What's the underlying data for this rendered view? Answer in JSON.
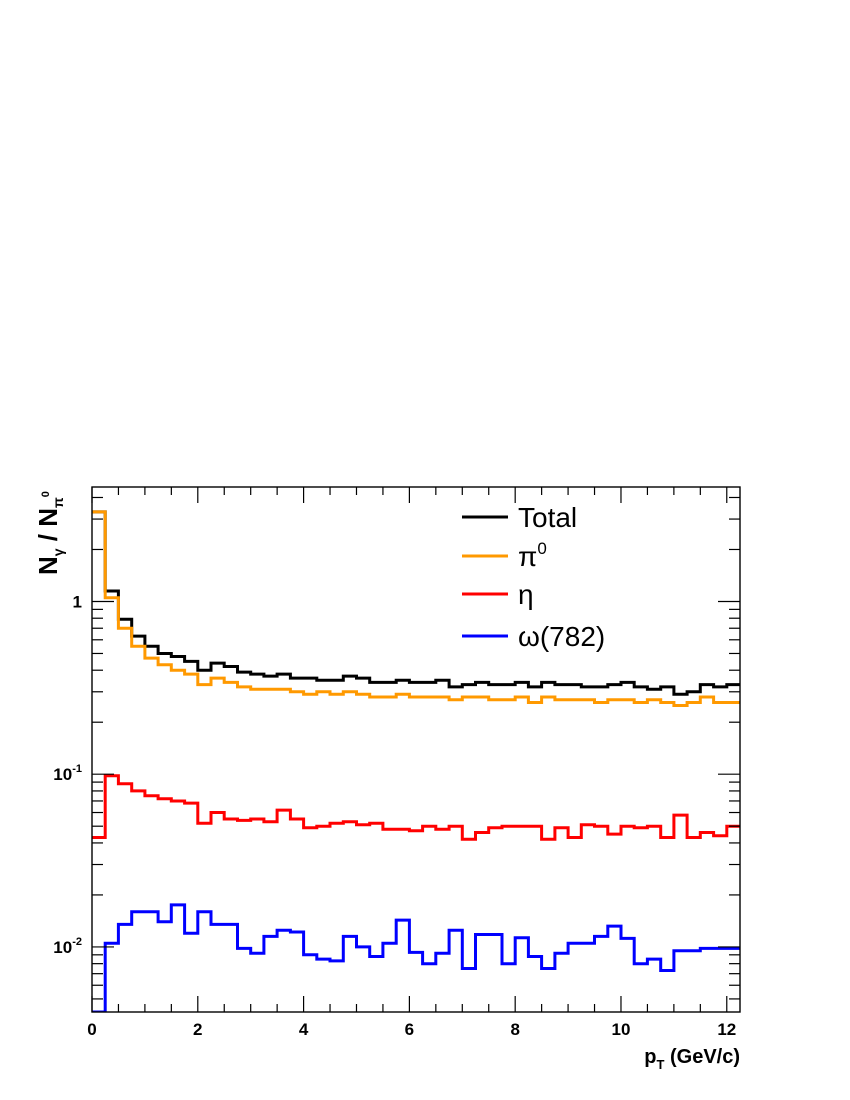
{
  "chart_data": {
    "type": "line",
    "style": "histogram-step",
    "title": "",
    "xlabel": {
      "main": "p",
      "sub": "T",
      "rest": " (GeV/c)"
    },
    "ylabel": {
      "n1": "N",
      "sub1": "γ",
      "mid": " / N",
      "sub2": "π",
      "sup2": "0"
    },
    "xlim": [
      0,
      12.25
    ],
    "ylim": [
      0.0042,
      4.6
    ],
    "yscale": "log",
    "x_ticks": [
      "0",
      "2",
      "4",
      "6",
      "8",
      "10",
      "12"
    ],
    "y_ticks": [
      {
        "value": 1,
        "base": "1",
        "exp": ""
      },
      {
        "value": 0.1,
        "base": "10",
        "exp": "-1"
      },
      {
        "value": 0.01,
        "base": "10",
        "exp": "-2"
      }
    ],
    "bin_width": 0.25,
    "legend_position": "top-right",
    "series": [
      {
        "name": "Total",
        "color": "#000000",
        "values": [
          3.3,
          1.15,
          0.79,
          0.63,
          0.55,
          0.5,
          0.48,
          0.45,
          0.4,
          0.44,
          0.42,
          0.39,
          0.38,
          0.37,
          0.38,
          0.36,
          0.36,
          0.35,
          0.35,
          0.37,
          0.36,
          0.34,
          0.34,
          0.35,
          0.34,
          0.34,
          0.35,
          0.32,
          0.33,
          0.34,
          0.33,
          0.33,
          0.34,
          0.32,
          0.34,
          0.33,
          0.33,
          0.32,
          0.32,
          0.33,
          0.34,
          0.32,
          0.31,
          0.32,
          0.29,
          0.3,
          0.33,
          0.32,
          0.33
        ]
      },
      {
        "name": "π",
        "name_sup": "0",
        "color": "#ff9900",
        "values": [
          3.3,
          1.05,
          0.7,
          0.55,
          0.47,
          0.43,
          0.4,
          0.38,
          0.33,
          0.36,
          0.34,
          0.32,
          0.31,
          0.31,
          0.31,
          0.3,
          0.29,
          0.3,
          0.29,
          0.3,
          0.29,
          0.28,
          0.28,
          0.29,
          0.28,
          0.28,
          0.28,
          0.27,
          0.28,
          0.28,
          0.27,
          0.27,
          0.28,
          0.26,
          0.28,
          0.27,
          0.27,
          0.27,
          0.26,
          0.27,
          0.27,
          0.26,
          0.27,
          0.26,
          0.25,
          0.26,
          0.28,
          0.26,
          0.26
        ]
      },
      {
        "name": "η",
        "color": "#ff0000",
        "values": [
          0.043,
          0.098,
          0.088,
          0.08,
          0.075,
          0.072,
          0.07,
          0.068,
          0.052,
          0.06,
          0.055,
          0.054,
          0.055,
          0.053,
          0.062,
          0.055,
          0.049,
          0.05,
          0.052,
          0.053,
          0.051,
          0.052,
          0.048,
          0.048,
          0.047,
          0.05,
          0.048,
          0.05,
          0.042,
          0.046,
          0.049,
          0.05,
          0.05,
          0.05,
          0.042,
          0.049,
          0.043,
          0.051,
          0.05,
          0.045,
          0.05,
          0.049,
          0.05,
          0.043,
          0.058,
          0.043,
          0.046,
          0.044,
          0.05
        ]
      },
      {
        "name": "ω(782)",
        "color": "#0000ff",
        "values": [
          0.0042,
          0.0105,
          0.0135,
          0.016,
          0.016,
          0.014,
          0.0175,
          0.012,
          0.016,
          0.0135,
          0.0135,
          0.0098,
          0.0092,
          0.0115,
          0.0125,
          0.0122,
          0.009,
          0.0085,
          0.0083,
          0.0115,
          0.01,
          0.0088,
          0.0105,
          0.0143,
          0.0093,
          0.008,
          0.0092,
          0.0125,
          0.0075,
          0.0118,
          0.0118,
          0.008,
          0.0113,
          0.0088,
          0.0075,
          0.0092,
          0.0105,
          0.0105,
          0.0115,
          0.0132,
          0.0112,
          0.008,
          0.0085,
          0.0073,
          0.0095,
          0.0095,
          0.0098,
          0.0098,
          0.0098
        ]
      }
    ]
  }
}
